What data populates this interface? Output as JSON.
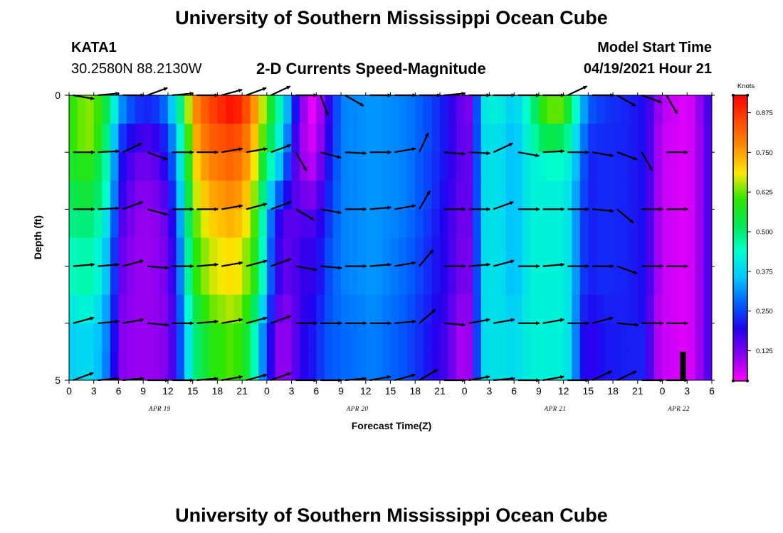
{
  "header": {
    "title_top": "University of Southern Mississippi Ocean Cube",
    "title_bottom": "University of Southern Mississippi Ocean Cube",
    "station_id": "KATA1",
    "station_coords": "30.2580N  88.2130W",
    "model_start_label": "Model Start Time",
    "model_start_value": "04/19/2021 Hour 21"
  },
  "colors": {
    "scale": [
      "#ff00ff",
      "#8800ee",
      "#2200ee",
      "#0060ff",
      "#00c8ff",
      "#00ffcc",
      "#00e85a",
      "#30e600",
      "#ffe800",
      "#ff9000",
      "#ff4a00",
      "#ff0000"
    ],
    "arrow": "#000000",
    "wind_bar": "#000000"
  },
  "chart_data": {
    "type": "heatmap",
    "title": "2-D Currents Speed-Magnitude",
    "xlabel": "Forecast Time(Z)",
    "ylabel": "Depth (ft)",
    "x_ticks": [
      "0",
      "3",
      "6",
      "9",
      "12",
      "15",
      "18",
      "21",
      "0",
      "3",
      "6",
      "9",
      "12",
      "15",
      "18",
      "21",
      "0",
      "3",
      "6",
      "9",
      "12",
      "15",
      "18",
      "21",
      "0",
      "3",
      "6"
    ],
    "x_range_hours": [
      0,
      78
    ],
    "date_labels": [
      {
        "text": "APR 19",
        "hour": 11
      },
      {
        "text": "APR 20",
        "hour": 35
      },
      {
        "text": "APR 21",
        "hour": 59
      },
      {
        "text": "APR 22",
        "hour": 74
      }
    ],
    "y_ticks": [
      "0",
      "5"
    ],
    "y_range_ft": [
      0,
      5
    ],
    "colorbar_label": "Knots",
    "colorbar_ticks": [
      "0.125",
      "0.250",
      "0.375",
      "0.500",
      "0.625",
      "0.750",
      "0.875"
    ],
    "colorbar_range": [
      0.03,
      0.93
    ],
    "depth_levels_ft": [
      0.25,
      0.75,
      1.25,
      1.75,
      2.25,
      2.75,
      3.25,
      3.75,
      4.25,
      4.75
    ],
    "speed_by_hour": [
      [
        0,
        0.58,
        0.58,
        0.55,
        0.52,
        0.48,
        0.44,
        0.44,
        0.4,
        0.36,
        0.36
      ],
      [
        1,
        0.62,
        0.62,
        0.58,
        0.55,
        0.5,
        0.46,
        0.46,
        0.42,
        0.38,
        0.38
      ],
      [
        3,
        0.64,
        0.64,
        0.58,
        0.55,
        0.5,
        0.46,
        0.46,
        0.42,
        0.38,
        0.38
      ],
      [
        5,
        0.5,
        0.45,
        0.42,
        0.4,
        0.36,
        0.32,
        0.32,
        0.3,
        0.28,
        0.27
      ],
      [
        6,
        0.33,
        0.26,
        0.22,
        0.2,
        0.17,
        0.15,
        0.15,
        0.13,
        0.12,
        0.12
      ],
      [
        8,
        0.24,
        0.18,
        0.14,
        0.12,
        0.11,
        0.1,
        0.1,
        0.1,
        0.1,
        0.1
      ],
      [
        10,
        0.22,
        0.16,
        0.13,
        0.11,
        0.1,
        0.1,
        0.1,
        0.1,
        0.1,
        0.1
      ],
      [
        12,
        0.3,
        0.24,
        0.2,
        0.17,
        0.14,
        0.13,
        0.13,
        0.12,
        0.12,
        0.12
      ],
      [
        13,
        0.42,
        0.36,
        0.32,
        0.28,
        0.24,
        0.22,
        0.22,
        0.2,
        0.2,
        0.2
      ],
      [
        14,
        0.55,
        0.5,
        0.48,
        0.45,
        0.42,
        0.38,
        0.38,
        0.35,
        0.32,
        0.32
      ],
      [
        15,
        0.76,
        0.72,
        0.68,
        0.64,
        0.6,
        0.58,
        0.58,
        0.52,
        0.48,
        0.48
      ],
      [
        17,
        0.85,
        0.82,
        0.78,
        0.74,
        0.7,
        0.66,
        0.66,
        0.62,
        0.58,
        0.58
      ],
      [
        20,
        0.92,
        0.86,
        0.82,
        0.78,
        0.74,
        0.7,
        0.7,
        0.66,
        0.62,
        0.62
      ],
      [
        22,
        0.82,
        0.78,
        0.74,
        0.7,
        0.66,
        0.62,
        0.62,
        0.58,
        0.54,
        0.54
      ],
      [
        23,
        0.7,
        0.66,
        0.62,
        0.58,
        0.56,
        0.55,
        0.55,
        0.45,
        0.36,
        0.36
      ],
      [
        24,
        0.62,
        0.58,
        0.5,
        0.42,
        0.36,
        0.34,
        0.34,
        0.3,
        0.26,
        0.26
      ],
      [
        25,
        0.5,
        0.46,
        0.4,
        0.3,
        0.22,
        0.2,
        0.2,
        0.16,
        0.12,
        0.12
      ],
      [
        26,
        0.42,
        0.38,
        0.32,
        0.24,
        0.16,
        0.15,
        0.15,
        0.12,
        0.1,
        0.1
      ],
      [
        27,
        0.26,
        0.22,
        0.18,
        0.16,
        0.14,
        0.14,
        0.14,
        0.12,
        0.12,
        0.12
      ],
      [
        28,
        0.15,
        0.12,
        0.12,
        0.14,
        0.16,
        0.18,
        0.18,
        0.18,
        0.18,
        0.18
      ],
      [
        29,
        0.05,
        0.06,
        0.08,
        0.12,
        0.16,
        0.18,
        0.18,
        0.19,
        0.2,
        0.2
      ],
      [
        30,
        0.04,
        0.06,
        0.08,
        0.12,
        0.16,
        0.18,
        0.18,
        0.2,
        0.22,
        0.22
      ],
      [
        31,
        0.14,
        0.15,
        0.18,
        0.2,
        0.22,
        0.24,
        0.24,
        0.25,
        0.26,
        0.26
      ],
      [
        33,
        0.3,
        0.3,
        0.3,
        0.3,
        0.3,
        0.3,
        0.3,
        0.29,
        0.28,
        0.28
      ],
      [
        37,
        0.32,
        0.32,
        0.32,
        0.32,
        0.32,
        0.32,
        0.32,
        0.31,
        0.3,
        0.3
      ],
      [
        41,
        0.3,
        0.3,
        0.3,
        0.3,
        0.29,
        0.28,
        0.28,
        0.27,
        0.26,
        0.26
      ],
      [
        44,
        0.25,
        0.25,
        0.24,
        0.24,
        0.23,
        0.22,
        0.22,
        0.21,
        0.2,
        0.2
      ],
      [
        46,
        0.2,
        0.2,
        0.2,
        0.19,
        0.18,
        0.18,
        0.18,
        0.17,
        0.16,
        0.16
      ],
      [
        47,
        0.16,
        0.16,
        0.16,
        0.15,
        0.14,
        0.14,
        0.14,
        0.12,
        0.1,
        0.1
      ],
      [
        48,
        0.12,
        0.13,
        0.14,
        0.14,
        0.13,
        0.12,
        0.12,
        0.1,
        0.08,
        0.08
      ],
      [
        49,
        0.13,
        0.14,
        0.14,
        0.14,
        0.14,
        0.13,
        0.13,
        0.12,
        0.12,
        0.12
      ],
      [
        50,
        0.4,
        0.38,
        0.38,
        0.38,
        0.38,
        0.38,
        0.38,
        0.38,
        0.38,
        0.38
      ],
      [
        52,
        0.42,
        0.4,
        0.4,
        0.4,
        0.4,
        0.4,
        0.4,
        0.4,
        0.4,
        0.4
      ],
      [
        54,
        0.36,
        0.34,
        0.34,
        0.34,
        0.34,
        0.34,
        0.34,
        0.36,
        0.38,
        0.38
      ],
      [
        56,
        0.46,
        0.44,
        0.42,
        0.42,
        0.42,
        0.42,
        0.42,
        0.42,
        0.42,
        0.42
      ],
      [
        57,
        0.56,
        0.5,
        0.42,
        0.42,
        0.42,
        0.42,
        0.42,
        0.42,
        0.42,
        0.42
      ],
      [
        58,
        0.62,
        0.54,
        0.44,
        0.42,
        0.42,
        0.42,
        0.42,
        0.42,
        0.42,
        0.42
      ],
      [
        60,
        0.62,
        0.52,
        0.44,
        0.42,
        0.42,
        0.42,
        0.42,
        0.42,
        0.42,
        0.42
      ],
      [
        61,
        0.5,
        0.44,
        0.4,
        0.38,
        0.38,
        0.38,
        0.38,
        0.38,
        0.38,
        0.38
      ],
      [
        62,
        0.38,
        0.34,
        0.3,
        0.28,
        0.26,
        0.26,
        0.26,
        0.24,
        0.22,
        0.22
      ],
      [
        63,
        0.27,
        0.24,
        0.22,
        0.22,
        0.22,
        0.22,
        0.22,
        0.2,
        0.18,
        0.18
      ],
      [
        65,
        0.24,
        0.23,
        0.23,
        0.23,
        0.23,
        0.23,
        0.23,
        0.22,
        0.21,
        0.21
      ],
      [
        68,
        0.22,
        0.22,
        0.22,
        0.22,
        0.22,
        0.22,
        0.22,
        0.22,
        0.22,
        0.22
      ],
      [
        70,
        0.2,
        0.2,
        0.2,
        0.2,
        0.2,
        0.2,
        0.2,
        0.2,
        0.22,
        0.22
      ],
      [
        71,
        0.13,
        0.12,
        0.12,
        0.12,
        0.12,
        0.12,
        0.12,
        0.1,
        0.1,
        0.1
      ],
      [
        72,
        0.08,
        0.07,
        0.07,
        0.07,
        0.07,
        0.07,
        0.07,
        0.07,
        0.07,
        0.07
      ],
      [
        75,
        0.05,
        0.05,
        0.05,
        0.05,
        0.05,
        0.05,
        0.05,
        0.05,
        0.05,
        0.05
      ],
      [
        76,
        0.07,
        0.07,
        0.07,
        0.07,
        0.07,
        0.07,
        0.07,
        0.07,
        0.07,
        0.07
      ],
      [
        77,
        0.14,
        0.13,
        0.13,
        0.13,
        0.13,
        0.13,
        0.13,
        0.13,
        0.13,
        0.13
      ],
      [
        78,
        0.18,
        0.18,
        0.18,
        0.18,
        0.18,
        0.18,
        0.18,
        0.18,
        0.18,
        0.18
      ]
    ],
    "vector_hours": [
      0.5,
      3.5,
      6.5,
      9.5,
      12.5,
      15.5,
      18.5,
      21.5,
      24.5,
      27.5,
      30.5,
      33.5,
      36.5,
      39.5,
      42.5,
      45.5,
      48.5,
      51.5,
      54.5,
      57.5,
      60.5,
      63.5,
      66.5,
      69.5,
      72.5,
      75.5
    ],
    "vector_depths_ft": [
      0,
      1,
      2,
      3,
      4,
      5
    ],
    "vector_angles_deg": [
      [
        10,
        -5,
        0,
        -20,
        -5,
        0,
        -15,
        -20,
        -25,
        0,
        70,
        30,
        0,
        0,
        0,
        -5,
        0,
        0,
        0,
        0,
        -25,
        0,
        30,
        20,
        60
      ],
      [
        0,
        -3,
        -25,
        20,
        0,
        0,
        -10,
        -10,
        -20,
        60,
        15,
        3,
        0,
        -10,
        -65,
        5,
        3,
        -25,
        10,
        -3,
        0,
        10,
        20,
        60,
        0
      ],
      [
        0,
        -3,
        -20,
        15,
        0,
        0,
        -10,
        -15,
        -20,
        30,
        10,
        0,
        -5,
        -10,
        -60,
        0,
        0,
        -20,
        0,
        0,
        0,
        5,
        40,
        0,
        0
      ],
      [
        -5,
        -5,
        -15,
        5,
        0,
        -5,
        -10,
        -15,
        -20,
        10,
        5,
        0,
        -5,
        -10,
        -50,
        0,
        -5,
        -15,
        0,
        -5,
        0,
        0,
        20,
        0,
        0
      ],
      [
        -15,
        -5,
        -10,
        5,
        0,
        -5,
        -10,
        -15,
        -20,
        0,
        0,
        0,
        0,
        -5,
        -40,
        5,
        -10,
        -10,
        0,
        -10,
        0,
        -15,
        5,
        0,
        0
      ],
      [
        -20,
        -5,
        -5,
        0,
        0,
        -5,
        -10,
        -15,
        -20,
        0,
        0,
        -5,
        -10,
        -15,
        -30,
        0,
        -10,
        -5,
        0,
        -10,
        0,
        -25,
        -25,
        0,
        0
      ]
    ],
    "wind_bar_hour": 74.5,
    "wind_bar_depth_ft": [
      4.5,
      5.0
    ]
  }
}
